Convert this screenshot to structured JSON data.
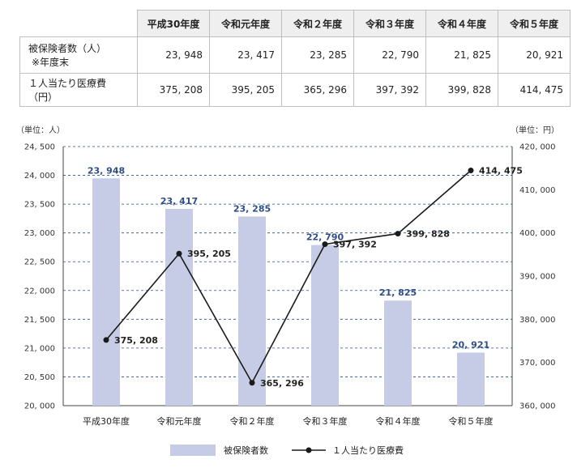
{
  "table": {
    "headers": [
      "平成30年度",
      "令和元年度",
      "令和２年度",
      "令和３年度",
      "令和４年度",
      "令和５年度"
    ],
    "rows": [
      {
        "label_line1": "被保険者数（人）",
        "label_line2": "※年度末",
        "values": [
          "23, 948",
          "23, 417",
          "23, 285",
          "22, 790",
          "21, 825",
          "20, 921"
        ]
      },
      {
        "label_line1": "１人当たり医療費（円）",
        "label_line2": "",
        "values": [
          "375, 208",
          "395, 205",
          "365, 296",
          "397, 392",
          "399, 828",
          "414, 475"
        ]
      }
    ]
  },
  "chart_data": {
    "type": "bar+line",
    "categories": [
      "平成30年度",
      "令和元年度",
      "令和２年度",
      "令和３年度",
      "令和４年度",
      "令和５年度"
    ],
    "series": [
      {
        "name": "被保険者数",
        "type": "bar",
        "axis": "left",
        "values": [
          23948,
          23417,
          23285,
          22790,
          21825,
          20921
        ],
        "labels": [
          "23, 948",
          "23, 417",
          "23, 285",
          "22, 790",
          "21, 825",
          "20, 921"
        ],
        "color": "#c6cce6"
      },
      {
        "name": "１人当たり医療費",
        "type": "line",
        "axis": "right",
        "values": [
          375208,
          395205,
          365296,
          397392,
          399828,
          414475
        ],
        "labels": [
          "375, 208",
          "395, 205",
          "365, 296",
          "397, 392",
          "399, 828",
          "414, 475"
        ],
        "color": "#1a1a1a"
      }
    ],
    "left_axis": {
      "unit": "（単位：人）",
      "min": 20000,
      "max": 24500,
      "step": 500,
      "tick_labels": [
        "20, 000",
        "20, 500",
        "21, 000",
        "21, 500",
        "22, 000",
        "22, 500",
        "23, 000",
        "23, 500",
        "24, 000",
        "24, 500"
      ]
    },
    "right_axis": {
      "unit": "（単位：円）",
      "min": 360000,
      "max": 420000,
      "step": 10000,
      "tick_labels": [
        "360, 000",
        "370, 000",
        "380, 000",
        "390, 000",
        "400, 000",
        "410, 000",
        "420, 000"
      ]
    },
    "grid": "dashed-horizontal",
    "legend_position": "bottom-center",
    "tick_label_color": "#2e4e85"
  }
}
